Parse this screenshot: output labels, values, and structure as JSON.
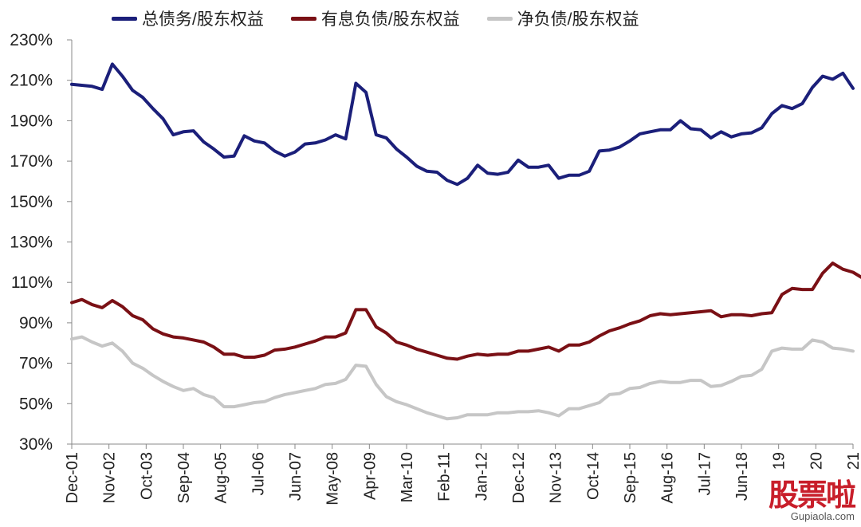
{
  "chart_data": {
    "type": "line",
    "title": "",
    "xlabel": "",
    "ylabel": "",
    "ylim": [
      30,
      230
    ],
    "yticks": [
      30,
      50,
      70,
      90,
      110,
      130,
      150,
      170,
      190,
      210,
      230
    ],
    "ytick_labels": [
      "30%",
      "50%",
      "70%",
      "90%",
      "110%",
      "130%",
      "150%",
      "170%",
      "190%",
      "210%",
      "230%"
    ],
    "x_tick_labels": [
      "Dec-01",
      "Nov-02",
      "Oct-03",
      "Sep-04",
      "Aug-05",
      "Jul-06",
      "Jun-07",
      "May-08",
      "Apr-09",
      "Mar-10",
      "Feb-11",
      "Jan-12",
      "Dec-12",
      "Nov-13",
      "Oct-14",
      "Sep-15",
      "Aug-16",
      "Jul-17",
      "Jun-18",
      "19",
      "20",
      "21"
    ],
    "grid": false,
    "legend_position": "top",
    "series": [
      {
        "name": "总债务/股东权益",
        "color": "#1b1f7a",
        "values": [
          208,
          207.5,
          207,
          205.5,
          218,
          212,
          205,
          201.5,
          196,
          191,
          183,
          184.5,
          185,
          179.5,
          176,
          172,
          172.5,
          182.5,
          180,
          179,
          175,
          172.5,
          174.5,
          178.5,
          179,
          180.5,
          183,
          181,
          208.5,
          204,
          183,
          181.5,
          176,
          172,
          167.5,
          165,
          164.5,
          160.5,
          158.5,
          161.5,
          168,
          164,
          163.5,
          164.5,
          170.5,
          167,
          167,
          168,
          161.5,
          163,
          163,
          165,
          175,
          175.5,
          177,
          180,
          183.5,
          184.5,
          185.5,
          185.5,
          190,
          186,
          185.5,
          181.5,
          184.5,
          182,
          183.5,
          184,
          186.5,
          193.5,
          197.5,
          196,
          198.5,
          206.5,
          212,
          210.5,
          213.5,
          206
        ]
      },
      {
        "name": "有息负债/股东权益",
        "color": "#7a1015",
        "values": [
          100,
          101.5,
          99,
          97.5,
          101,
          98,
          93.5,
          91.5,
          87,
          84.5,
          83,
          82.5,
          81.5,
          80.5,
          78,
          74.5,
          74.5,
          73,
          73,
          74,
          76.5,
          77,
          78,
          79.5,
          81,
          83,
          83,
          85,
          96.5,
          96.5,
          88,
          85,
          80.5,
          79,
          77,
          75.5,
          74,
          72.5,
          72,
          73.5,
          74.5,
          74,
          74.5,
          74.5,
          76,
          76,
          77,
          78,
          76,
          79,
          79,
          80.5,
          83.5,
          86,
          87.5,
          89.5,
          91,
          93.5,
          94.5,
          94,
          94.5,
          95,
          95.5,
          96,
          93,
          94,
          94,
          93.5,
          94.5,
          95,
          104,
          107,
          106.5,
          106.5,
          114.5,
          119.5,
          116.5,
          115,
          112
        ]
      },
      {
        "name": "净负债/股东权益",
        "color": "#c6c6c6",
        "values": [
          82,
          83,
          80.5,
          78.5,
          80,
          76,
          70,
          67.5,
          64,
          61,
          58.5,
          56.5,
          57.5,
          54.5,
          53,
          48.5,
          48.5,
          49.5,
          50.5,
          51,
          53,
          54.5,
          55.5,
          56.5,
          57.5,
          59.5,
          60,
          62,
          69,
          68.5,
          59.5,
          53.5,
          51,
          49.5,
          47.5,
          45.5,
          44,
          42.5,
          43,
          44.5,
          44.5,
          44.5,
          45.5,
          45.5,
          46,
          46,
          46.5,
          45.5,
          44,
          47.5,
          47.5,
          49,
          50.5,
          54.5,
          55,
          57.5,
          58,
          60,
          61,
          60.5,
          60.5,
          61.5,
          61.5,
          58.5,
          59,
          61,
          63.5,
          64,
          67,
          76,
          77.5,
          77,
          77,
          81.5,
          80.5,
          77.5,
          77,
          76
        ]
      }
    ]
  },
  "watermark": {
    "logo_text": "股票啦",
    "url": "Gupiaola.com"
  }
}
